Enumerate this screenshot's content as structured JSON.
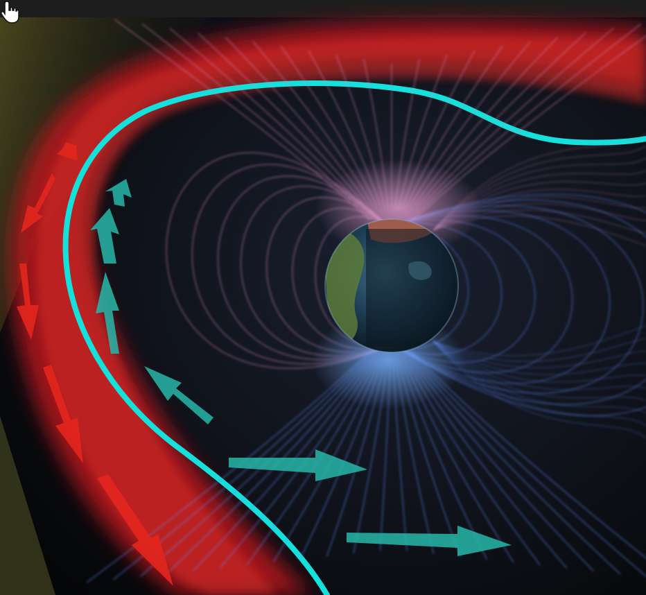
{
  "scene": {
    "subject": "earth-magnetosphere",
    "colors": {
      "background": "#101216",
      "bow_shock": "#d21d1d",
      "magnetopause": "#14e0dc",
      "north_field_lines": "#d98ac0",
      "south_field_lines": "#5f8cff",
      "inner_flow_arrows": "#27b7a9",
      "outer_flow_arrows": "#e3261d",
      "solar_wind": "#6f6a2a"
    },
    "icons": {
      "cursor": "hand-pointer-icon"
    }
  }
}
